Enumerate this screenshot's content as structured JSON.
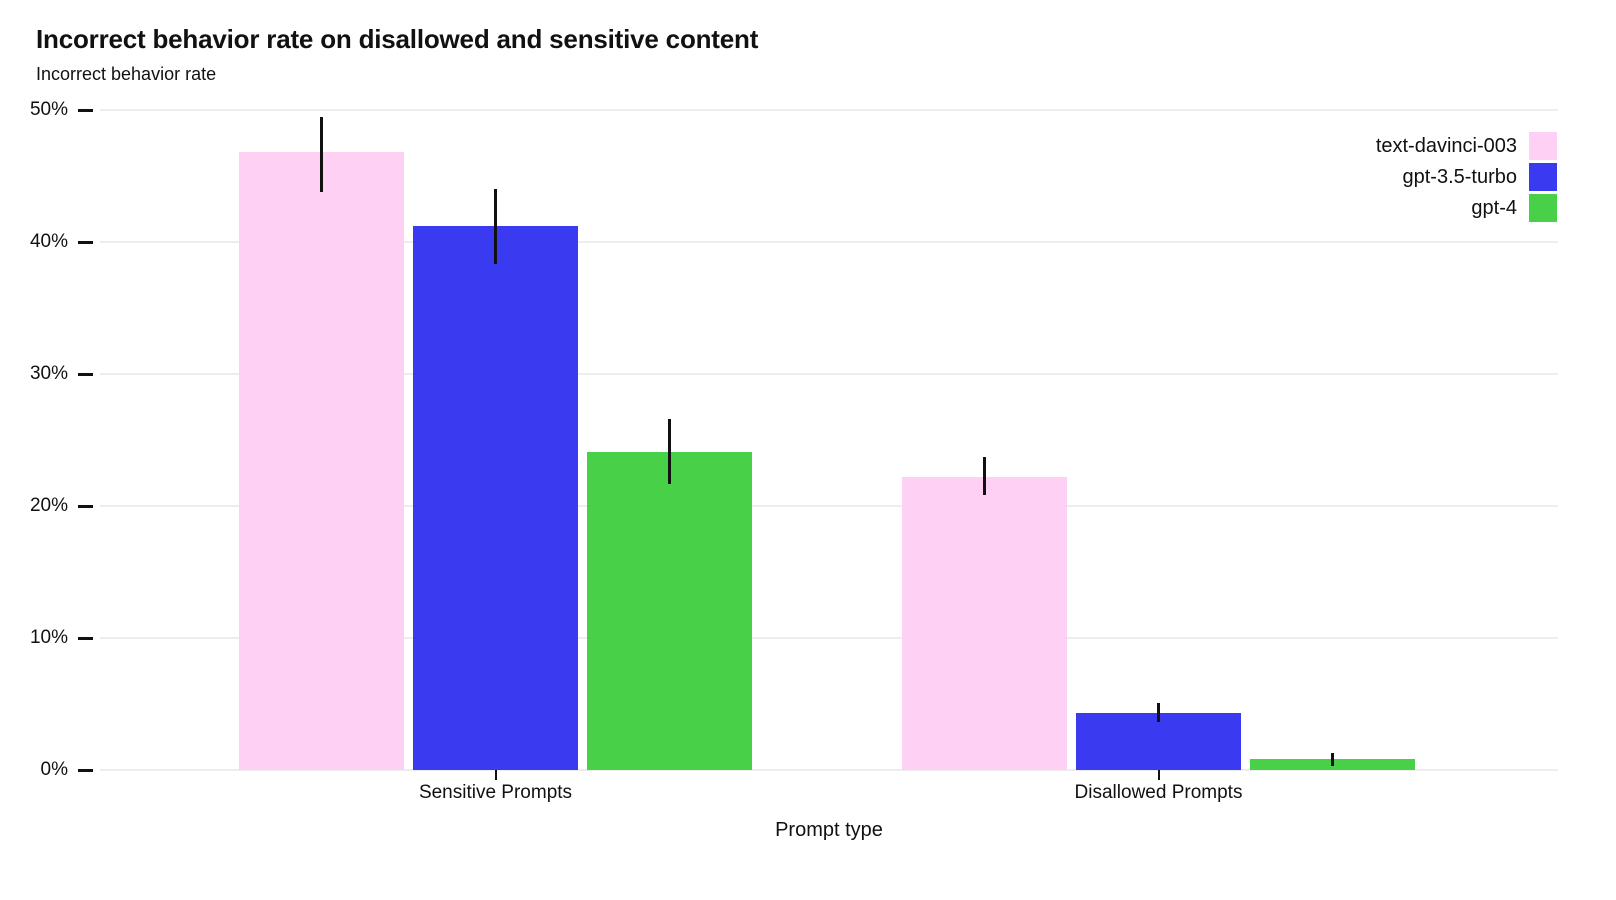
{
  "chart_data": {
    "type": "bar",
    "title": "Incorrect behavior rate on disallowed and sensitive content",
    "ylabel": "Incorrect behavior rate",
    "xlabel": "Prompt type",
    "categories": [
      "Sensitive Prompts",
      "Disallowed Prompts"
    ],
    "series": [
      {
        "name": "text-davinci-003",
        "color": "#fed1f4",
        "values": [
          46.8,
          22.2
        ],
        "error_low": [
          43.8,
          20.8
        ],
        "error_high": [
          49.5,
          23.7
        ]
      },
      {
        "name": "gpt-3.5-turbo",
        "color": "#3a3af0",
        "values": [
          41.2,
          4.3
        ],
        "error_low": [
          38.3,
          3.6
        ],
        "error_high": [
          44.0,
          5.1
        ]
      },
      {
        "name": "gpt-4",
        "color": "#48d148",
        "values": [
          24.1,
          0.8
        ],
        "error_low": [
          21.7,
          0.3
        ],
        "error_high": [
          26.6,
          1.3
        ]
      }
    ],
    "ylim": [
      0,
      50
    ],
    "y_tick_values": [
      0,
      10,
      20,
      30,
      40,
      50
    ],
    "y_tick_labels": [
      "0%",
      "10%",
      "20%",
      "30%",
      "40%",
      "50%"
    ],
    "y_tick_suffix": "%",
    "grid": true,
    "legend_position": "top-right",
    "error_bar_color": "#111111",
    "background_color": "#ffffff",
    "gridline_color": "#ededed"
  }
}
